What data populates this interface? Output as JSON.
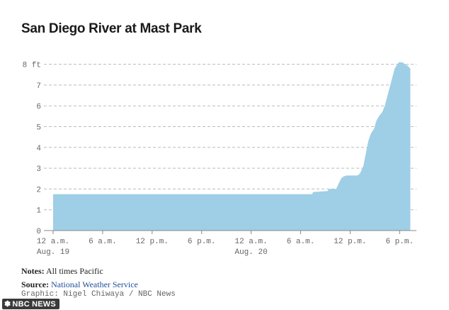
{
  "title": "San Diego River at Mast Park",
  "notes": {
    "notes_label": "Notes:",
    "notes_text": "All times Pacific",
    "source_label": "Source:",
    "source_text": "National Weather Service",
    "credit": "Graphic: Nigel Chiwaya / NBC News"
  },
  "logo": {
    "text": "NBC NEWS",
    "icon": "nbc-peacock-icon"
  },
  "colors": {
    "area": "#9ecfe6",
    "grid": "#bbbbbb",
    "axis": "#888888",
    "source_link": "#1f4e9a"
  },
  "chart_data": {
    "type": "area",
    "title": "San Diego River at Mast Park",
    "xlabel": "",
    "ylabel": "",
    "x_unit": "hours since 12 a.m. Aug. 19",
    "xlim": [
      -1,
      44
    ],
    "ylim": [
      0,
      8
    ],
    "y_ticks": [
      {
        "value": 0,
        "label": "0"
      },
      {
        "value": 1,
        "label": "1"
      },
      {
        "value": 2,
        "label": "2"
      },
      {
        "value": 3,
        "label": "3"
      },
      {
        "value": 4,
        "label": "4"
      },
      {
        "value": 5,
        "label": "5"
      },
      {
        "value": 6,
        "label": "6"
      },
      {
        "value": 7,
        "label": "7"
      },
      {
        "value": 8,
        "label": "8 ft"
      }
    ],
    "x_ticks": [
      {
        "value": 0,
        "label": "12 a.m.",
        "sublabel": "Aug. 19"
      },
      {
        "value": 6,
        "label": "6 a.m.",
        "sublabel": ""
      },
      {
        "value": 12,
        "label": "12 p.m.",
        "sublabel": ""
      },
      {
        "value": 18,
        "label": "6 p.m.",
        "sublabel": ""
      },
      {
        "value": 24,
        "label": "12 a.m.",
        "sublabel": "Aug. 20"
      },
      {
        "value": 30,
        "label": "6 a.m.",
        "sublabel": ""
      },
      {
        "value": 36,
        "label": "12 p.m.",
        "sublabel": ""
      },
      {
        "value": 42,
        "label": "6 p.m.",
        "sublabel": ""
      }
    ],
    "grid": true,
    "legend": "none",
    "series": [
      {
        "x": [
          0,
          31.4,
          31.5,
          33.3,
          33.4,
          34.3,
          34.9,
          35.2,
          35.6,
          36.0,
          36.9,
          37.2,
          37.6,
          37.9,
          38.2,
          38.5,
          38.9,
          39.2,
          39.5,
          39.9,
          40.2,
          40.6,
          41.0,
          41.4,
          41.9,
          42.3,
          42.9,
          43.3
        ],
        "y": [
          1.75,
          1.75,
          1.85,
          1.9,
          2.0,
          2.0,
          2.5,
          2.6,
          2.65,
          2.65,
          2.65,
          2.75,
          3.1,
          3.7,
          4.3,
          4.65,
          4.9,
          5.3,
          5.5,
          5.7,
          6.0,
          6.6,
          7.2,
          7.8,
          8.1,
          8.1,
          7.95,
          7.8
        ]
      }
    ]
  }
}
